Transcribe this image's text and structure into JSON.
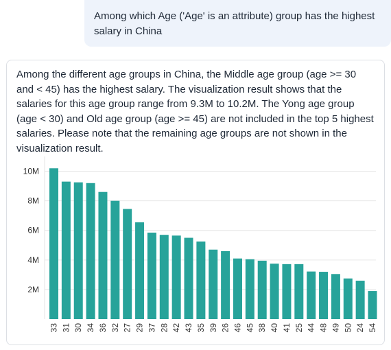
{
  "conversation": {
    "user_message": "Among which Age ('Age' is an attribute) group has the highest salary in China",
    "assistant_message": "Among the different age groups in China, the Middle age group (age >= 30 and < 45) has the highest salary. The visualization result shows that the salaries for this age group range from 9.3M to 10.2M. The Yong age group (age < 30) and Old age group (age >= 45) are not included in the top 5 highest salaries. Please note that the remaining age groups are not shown in the visualization result."
  },
  "colors": {
    "bar": "#27a39a",
    "grid": "#e6e6e6",
    "user_bubble": "#eef3fb"
  },
  "chart_data": {
    "type": "bar",
    "categories": [
      "33",
      "31",
      "30",
      "34",
      "36",
      "32",
      "27",
      "29",
      "37",
      "28",
      "42",
      "43",
      "35",
      "39",
      "26",
      "46",
      "45",
      "38",
      "40",
      "41",
      "25",
      "44",
      "48",
      "49",
      "50",
      "24",
      "54"
    ],
    "values": [
      10.2,
      9.3,
      9.25,
      9.2,
      8.6,
      8.0,
      7.45,
      6.55,
      5.85,
      5.7,
      5.65,
      5.5,
      5.25,
      4.7,
      4.6,
      4.1,
      4.05,
      3.95,
      3.75,
      3.72,
      3.72,
      3.22,
      3.2,
      3.05,
      2.75,
      2.6,
      1.9
    ],
    "unit": "M",
    "ylim": [
      0,
      11
    ],
    "yticks": [
      2,
      4,
      6,
      8,
      10
    ],
    "ytick_labels": [
      "2M",
      "4M",
      "6M",
      "8M",
      "10M"
    ],
    "grid": true,
    "title": "",
    "xlabel": "",
    "ylabel": ""
  }
}
